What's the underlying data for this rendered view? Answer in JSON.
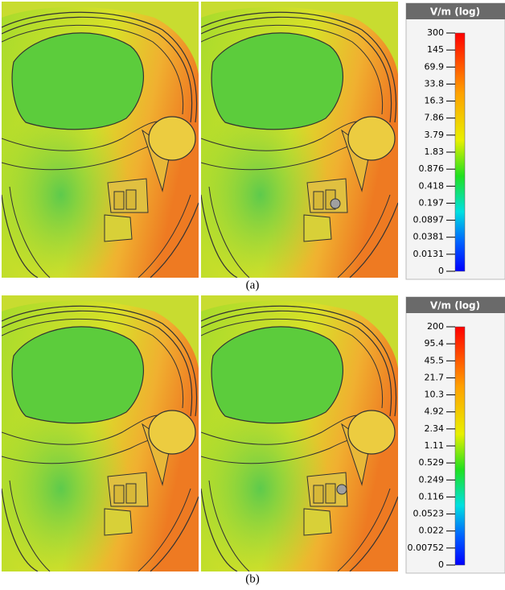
{
  "panels": [
    {
      "label": "(a)",
      "colorbar": {
        "title": "V/m (log)",
        "ticks": [
          "300",
          "145",
          "69.9",
          "33.8",
          "16.3",
          "7.86",
          "3.79",
          "1.83",
          "0.876",
          "0.418",
          "0.197",
          "0.0897",
          "0.0381",
          "0.0131",
          "0"
        ]
      }
    },
    {
      "label": "(b)",
      "colorbar": {
        "title": "V/m (log)",
        "ticks": [
          "200",
          "95.4",
          "45.5",
          "21.7",
          "10.3",
          "4.92",
          "2.34",
          "1.11",
          "0.529",
          "0.249",
          "0.116",
          "0.0523",
          "0.022",
          "0.00752",
          "0"
        ]
      }
    }
  ]
}
